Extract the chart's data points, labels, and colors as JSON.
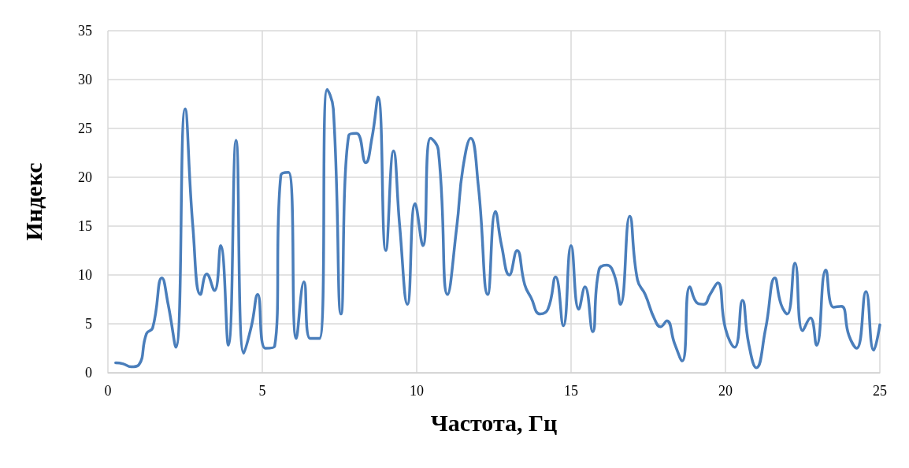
{
  "chart_data": {
    "type": "line",
    "xlabel": "Частота, Гц",
    "ylabel": "Индекс",
    "xlim": [
      0,
      25
    ],
    "xticks": [
      0,
      5,
      10,
      15,
      20,
      25
    ],
    "ylim": [
      0,
      35
    ],
    "yticks": [
      0,
      5,
      10,
      15,
      20,
      25,
      30,
      35
    ],
    "grid": true,
    "marker": "none",
    "line_style": "solid",
    "x": [
      0.25,
      0.5,
      0.75,
      1.0,
      1.25,
      1.45,
      1.75,
      1.95,
      2.2,
      2.5,
      2.75,
      3.0,
      3.2,
      3.45,
      3.65,
      3.9,
      4.15,
      4.4,
      4.65,
      4.85,
      5.1,
      5.4,
      5.6,
      5.85,
      6.1,
      6.35,
      6.55,
      6.85,
      7.1,
      7.3,
      7.55,
      7.8,
      8.05,
      8.35,
      8.55,
      8.75,
      9.0,
      9.25,
      9.45,
      9.7,
      9.95,
      10.2,
      10.45,
      10.7,
      11.0,
      11.3,
      11.5,
      11.75,
      12.0,
      12.3,
      12.55,
      12.75,
      13.0,
      13.25,
      13.5,
      13.7,
      14.0,
      14.25,
      14.5,
      14.75,
      15.0,
      15.25,
      15.45,
      15.7,
      15.9,
      16.15,
      16.4,
      16.6,
      16.9,
      17.15,
      17.4,
      17.7,
      17.9,
      18.1,
      18.35,
      18.6,
      18.85,
      19.1,
      19.3,
      19.5,
      19.75,
      20.0,
      20.3,
      20.55,
      20.75,
      21.0,
      21.3,
      21.6,
      21.8,
      22.0,
      22.25,
      22.5,
      22.75,
      22.95,
      23.25,
      23.5,
      23.75,
      24.0,
      24.25,
      24.55,
      24.8,
      25.0
    ],
    "series": [
      {
        "color": "#4a7ebb",
        "values": [
          1,
          0.9,
          0.6,
          0.8,
          4,
          4.6,
          9.7,
          7,
          2.6,
          27,
          15,
          8,
          10.1,
          8.4,
          13,
          2.8,
          23.8,
          2,
          4.8,
          8,
          2.5,
          2.7,
          20.2,
          20.5,
          3.5,
          9.3,
          3.5,
          3.5,
          29,
          27,
          6,
          24.3,
          24.5,
          21.5,
          24,
          28.2,
          12.5,
          22.7,
          15,
          7,
          17.3,
          13,
          24,
          22.8,
          8,
          15,
          21,
          24,
          19,
          8,
          16.5,
          13,
          10,
          12.5,
          9,
          7.7,
          6,
          6.5,
          9.8,
          4.8,
          13,
          6.5,
          8.8,
          4.2,
          10.5,
          11,
          10,
          7,
          16,
          9.5,
          8,
          5.5,
          4.7,
          5.3,
          3,
          1.2,
          8.8,
          7.1,
          7,
          8,
          9.2,
          4.5,
          2.6,
          7.4,
          3,
          0.5,
          4.5,
          9.7,
          7,
          6,
          11.2,
          4.3,
          5.6,
          2.8,
          10.5,
          6.7,
          6.8,
          3.8,
          2.5,
          8.3,
          2.3,
          4.9
        ]
      }
    ]
  }
}
